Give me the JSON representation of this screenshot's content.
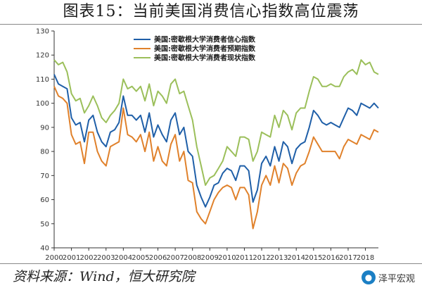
{
  "page": {
    "title": "图表15：当前美国消费信心指数高位震荡",
    "source": "资料来源：Wind，恒大研究院",
    "brand_name": "泽平宏观",
    "brand_icon": "wechat-bubble-icon"
  },
  "chart_data": {
    "type": "line",
    "title": "",
    "xlabel": "",
    "ylabel": "",
    "ylim": [
      40,
      130
    ],
    "yticks": [
      40,
      50,
      60,
      70,
      80,
      90,
      100,
      110,
      120,
      130
    ],
    "xlim": [
      2000.0,
      2018.75
    ],
    "xticks": [
      "2000",
      "2001",
      "2002",
      "2003",
      "2004",
      "2005",
      "2006",
      "2007",
      "2008",
      "2009",
      "2010",
      "2011",
      "2012",
      "2013",
      "2014",
      "2015",
      "2016",
      "2017",
      "2018"
    ],
    "legend_position": "top-left",
    "grid": false,
    "series": [
      {
        "name": "美国:密歇根大学消费者信心指数",
        "color": "#1f5fa8",
        "x": [
          2000.0,
          2000.25,
          2000.5,
          2000.75,
          2001.0,
          2001.25,
          2001.5,
          2001.75,
          2002.0,
          2002.25,
          2002.5,
          2002.75,
          2003.0,
          2003.25,
          2003.5,
          2003.75,
          2004.0,
          2004.25,
          2004.5,
          2004.75,
          2005.0,
          2005.25,
          2005.5,
          2005.75,
          2006.0,
          2006.25,
          2006.5,
          2006.75,
          2007.0,
          2007.25,
          2007.5,
          2007.75,
          2008.0,
          2008.25,
          2008.5,
          2008.75,
          2009.0,
          2009.25,
          2009.5,
          2009.75,
          2010.0,
          2010.25,
          2010.5,
          2010.75,
          2011.0,
          2011.25,
          2011.5,
          2011.75,
          2012.0,
          2012.25,
          2012.5,
          2012.75,
          2013.0,
          2013.25,
          2013.5,
          2013.75,
          2014.0,
          2014.25,
          2014.5,
          2014.75,
          2015.0,
          2015.25,
          2015.5,
          2015.75,
          2016.0,
          2016.25,
          2016.5,
          2016.75,
          2017.0,
          2017.25,
          2017.5,
          2017.75,
          2018.0,
          2018.25,
          2018.5,
          2018.75
        ],
        "values": [
          112,
          108,
          107,
          106,
          94,
          91,
          92,
          84,
          93,
          95,
          88,
          84,
          82,
          88,
          89,
          92,
          103,
          95,
          95,
          93,
          95,
          88,
          96,
          86,
          91,
          87,
          84,
          93,
          96,
          87,
          90,
          80,
          78,
          66,
          61,
          57,
          61,
          66,
          67,
          71,
          73,
          72,
          68,
          74,
          74,
          72,
          59,
          64,
          75,
          78,
          74,
          82,
          76,
          84,
          82,
          75,
          81,
          83,
          84,
          90,
          97,
          95,
          92,
          91,
          92,
          91,
          90,
          94,
          98,
          97,
          95,
          100,
          99,
          98,
          100,
          98
        ]
      },
      {
        "name": "美国:密歇根大学消费者预期指数",
        "color": "#e0812b",
        "x": [
          2000.0,
          2000.25,
          2000.5,
          2000.75,
          2001.0,
          2001.25,
          2001.5,
          2001.75,
          2002.0,
          2002.25,
          2002.5,
          2002.75,
          2003.0,
          2003.25,
          2003.5,
          2003.75,
          2004.0,
          2004.25,
          2004.5,
          2004.75,
          2005.0,
          2005.25,
          2005.5,
          2005.75,
          2006.0,
          2006.25,
          2006.5,
          2006.75,
          2007.0,
          2007.25,
          2007.5,
          2007.75,
          2008.0,
          2008.25,
          2008.5,
          2008.75,
          2009.0,
          2009.25,
          2009.5,
          2009.75,
          2010.0,
          2010.25,
          2010.5,
          2010.75,
          2011.0,
          2011.25,
          2011.5,
          2011.75,
          2012.0,
          2012.25,
          2012.5,
          2012.75,
          2013.0,
          2013.25,
          2013.5,
          2013.75,
          2014.0,
          2014.25,
          2014.5,
          2014.75,
          2015.0,
          2015.25,
          2015.5,
          2015.75,
          2016.0,
          2016.25,
          2016.5,
          2016.75,
          2017.0,
          2017.25,
          2017.5,
          2017.75,
          2018.0,
          2018.25,
          2018.5,
          2018.75
        ],
        "values": [
          107,
          103,
          102,
          100,
          87,
          83,
          84,
          75,
          88,
          88,
          80,
          76,
          74,
          82,
          83,
          84,
          98,
          87,
          86,
          84,
          87,
          80,
          88,
          76,
          82,
          76,
          74,
          83,
          87,
          76,
          80,
          68,
          67,
          55,
          52,
          50,
          55,
          60,
          63,
          65,
          66,
          65,
          60,
          65,
          65,
          62,
          48,
          55,
          66,
          70,
          66,
          74,
          67,
          75,
          73,
          66,
          71,
          74,
          75,
          80,
          86,
          83,
          80,
          80,
          80,
          80,
          77,
          82,
          85,
          84,
          83,
          87,
          86,
          85,
          89,
          88
        ]
      },
      {
        "name": "美国:密歇根大学消费者现状指数",
        "color": "#9bbf5a",
        "x": [
          2000.0,
          2000.25,
          2000.5,
          2000.75,
          2001.0,
          2001.25,
          2001.5,
          2001.75,
          2002.0,
          2002.25,
          2002.5,
          2002.75,
          2003.0,
          2003.25,
          2003.5,
          2003.75,
          2004.0,
          2004.25,
          2004.5,
          2004.75,
          2005.0,
          2005.25,
          2005.5,
          2005.75,
          2006.0,
          2006.25,
          2006.5,
          2006.75,
          2007.0,
          2007.25,
          2007.5,
          2007.75,
          2008.0,
          2008.25,
          2008.5,
          2008.75,
          2009.0,
          2009.25,
          2009.5,
          2009.75,
          2010.0,
          2010.25,
          2010.5,
          2010.75,
          2011.0,
          2011.25,
          2011.5,
          2011.75,
          2012.0,
          2012.25,
          2012.5,
          2012.75,
          2013.0,
          2013.25,
          2013.5,
          2013.75,
          2014.0,
          2014.25,
          2014.5,
          2014.75,
          2015.0,
          2015.25,
          2015.5,
          2015.75,
          2016.0,
          2016.25,
          2016.5,
          2016.75,
          2017.0,
          2017.25,
          2017.5,
          2017.75,
          2018.0,
          2018.25,
          2018.5,
          2018.75
        ],
        "values": [
          118,
          116,
          117,
          113,
          104,
          101,
          102,
          96,
          99,
          103,
          99,
          94,
          92,
          95,
          97,
          100,
          110,
          106,
          107,
          105,
          107,
          101,
          108,
          99,
          105,
          103,
          100,
          108,
          110,
          104,
          105,
          99,
          93,
          82,
          74,
          66,
          69,
          70,
          73,
          76,
          82,
          80,
          78,
          86,
          86,
          85,
          76,
          80,
          88,
          87,
          86,
          95,
          90,
          97,
          95,
          89,
          96,
          98,
          98,
          105,
          111,
          110,
          107,
          107,
          108,
          107,
          107,
          111,
          113,
          114,
          112,
          118,
          116,
          117,
          113,
          112
        ]
      }
    ]
  }
}
